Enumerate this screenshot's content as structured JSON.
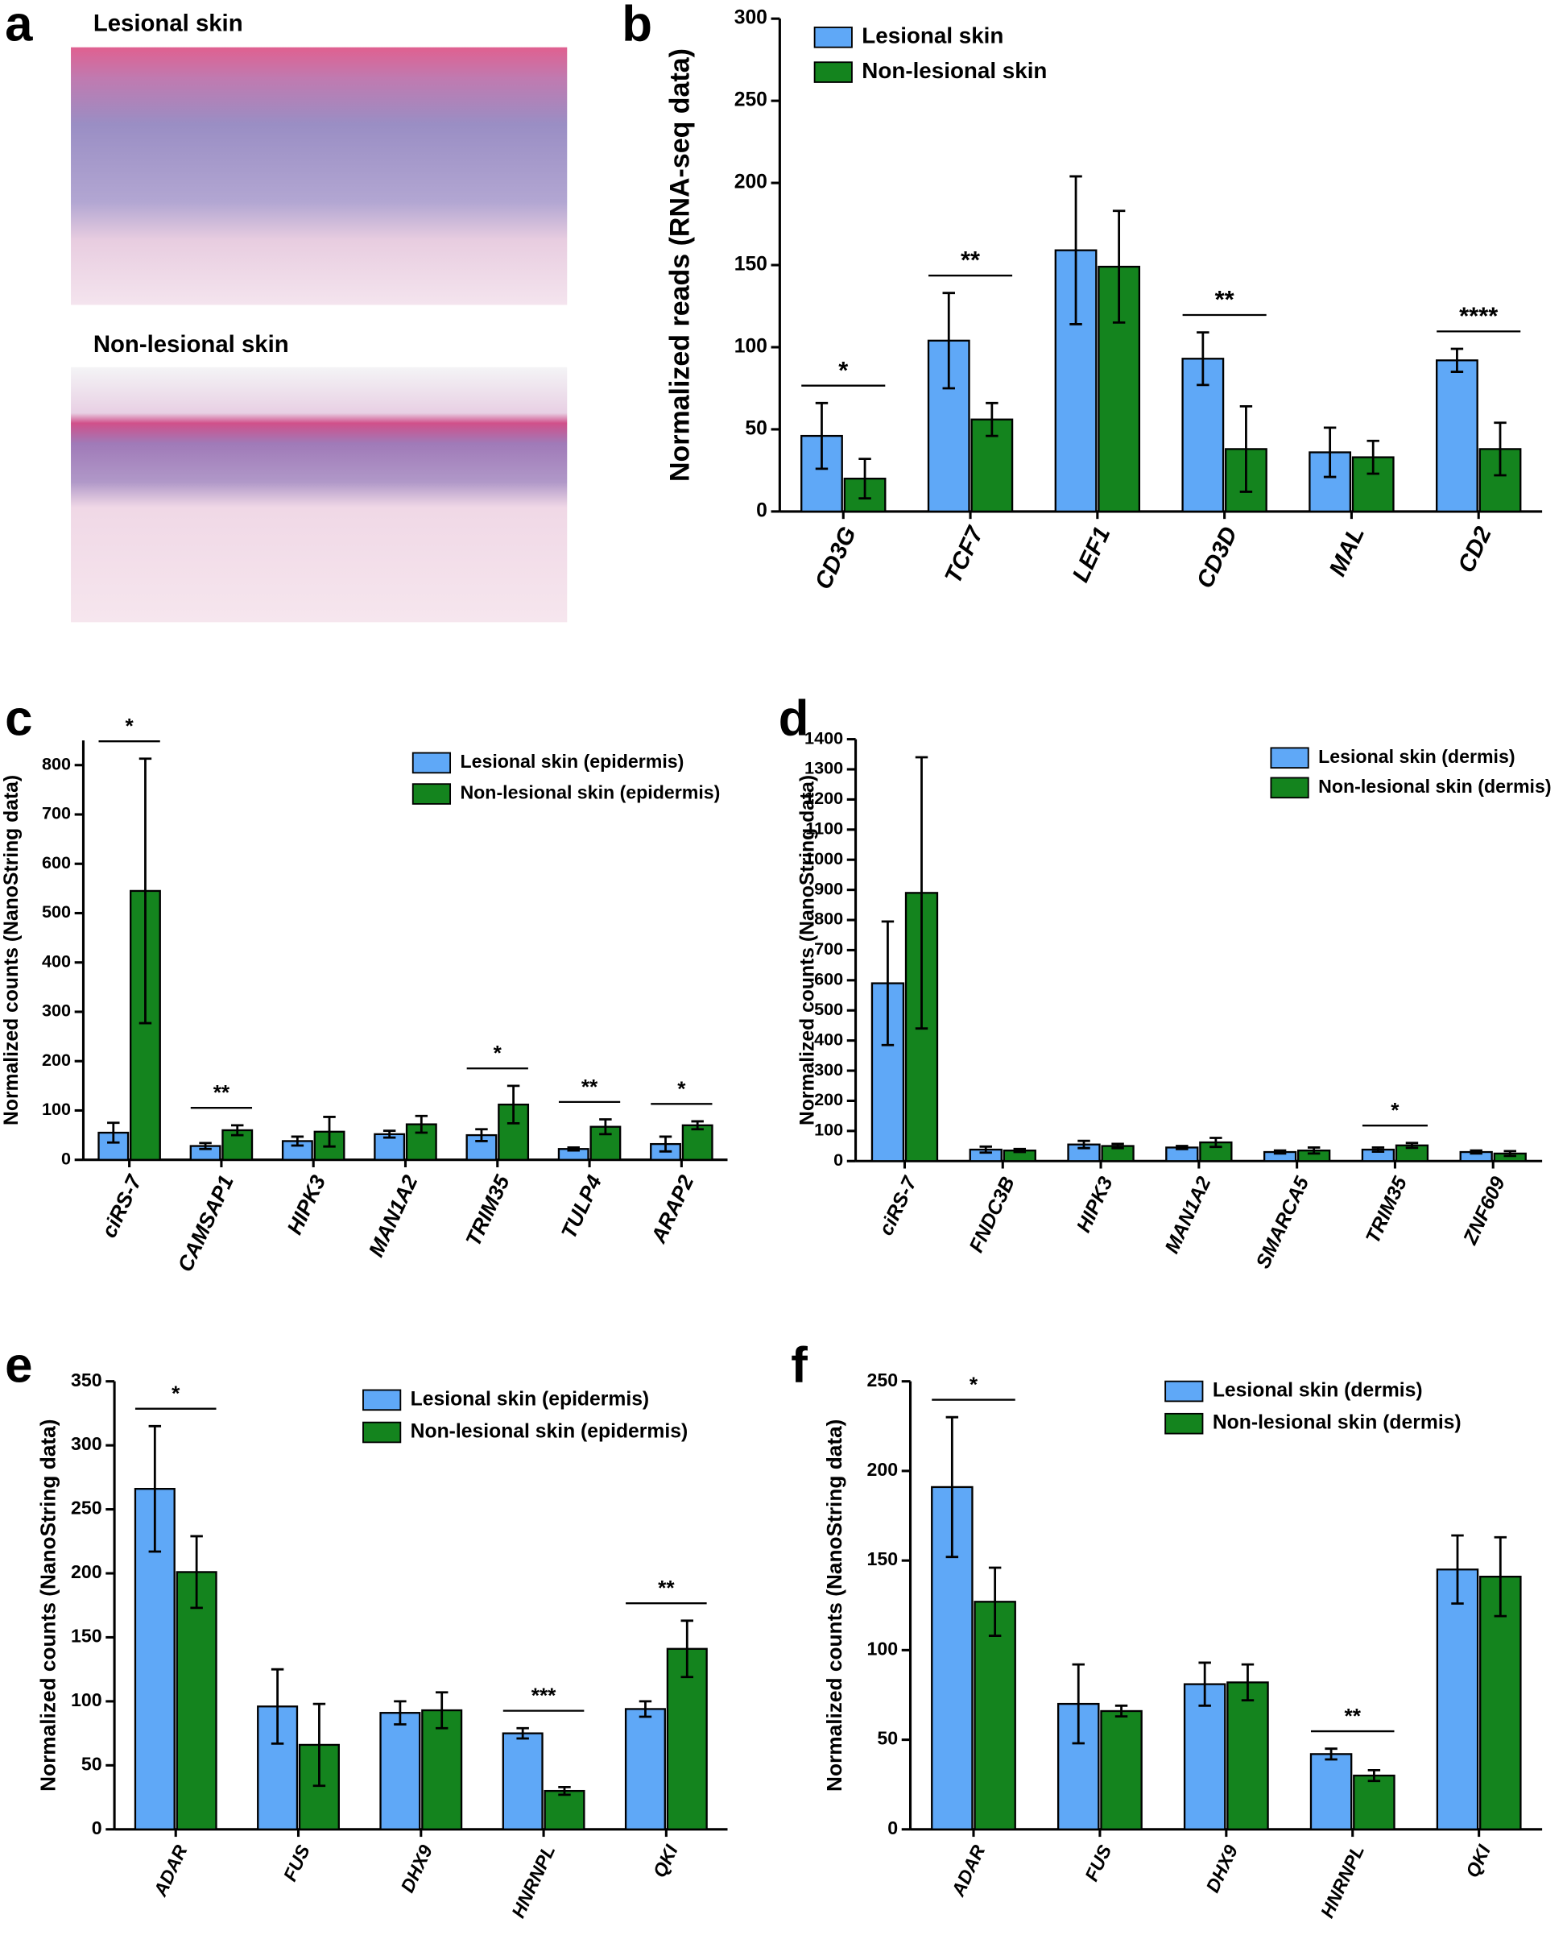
{
  "panel_a": {
    "label": "a",
    "images": [
      {
        "title": "Lesional skin"
      },
      {
        "title": "Non-lesional skin"
      }
    ]
  },
  "chart_data": [
    {
      "type": "bar",
      "panel": "b",
      "ylabel": "Normalized reads (RNA-seq data)",
      "categories": [
        "CD3G",
        "TCF7",
        "LEF1",
        "CD3D",
        "MAL",
        "CD2"
      ],
      "series": [
        {
          "name": "Lesional skin",
          "color": "#5fa8f7",
          "values": [
            46,
            104,
            159,
            93,
            36,
            92
          ],
          "errors": [
            20,
            29,
            45,
            16,
            15,
            7
          ]
        },
        {
          "name": "Non-lesional skin",
          "color": "#14841e",
          "values": [
            20,
            56,
            149,
            38,
            33,
            38
          ],
          "errors": [
            12,
            10,
            34,
            26,
            10,
            16
          ]
        }
      ],
      "significance": [
        "*",
        "**",
        null,
        "**",
        null,
        "****"
      ],
      "ylim": [
        0,
        300
      ],
      "yticks": [
        0,
        50,
        100,
        150,
        200,
        250,
        300
      ]
    },
    {
      "type": "bar",
      "panel": "c",
      "ylabel": "Normalized counts (NanoString data)",
      "categories": [
        "ciRS-7",
        "CAMSAP1",
        "HIPK3",
        "MAN1A2",
        "TRIM35",
        "TULP4",
        "ARAP2"
      ],
      "series": [
        {
          "name": "Lesional skin (epidermis)",
          "color": "#5fa8f7",
          "values": [
            55,
            28,
            38,
            52,
            50,
            22,
            32
          ],
          "errors": [
            20,
            6,
            9,
            7,
            12,
            3,
            15
          ]
        },
        {
          "name": "Non-lesional skin (epidermis)",
          "color": "#14841e",
          "values": [
            545,
            60,
            57,
            72,
            112,
            67,
            70
          ],
          "errors": [
            268,
            10,
            30,
            17,
            38,
            15,
            8
          ]
        }
      ],
      "significance": [
        "*",
        "**",
        null,
        null,
        "*",
        "**",
        "*"
      ],
      "ylim": [
        0,
        850
      ],
      "yticks": [
        0,
        100,
        200,
        300,
        400,
        500,
        600,
        700,
        800
      ]
    },
    {
      "type": "bar",
      "panel": "d",
      "ylabel": "Normalized counts (NanoString data)",
      "categories": [
        "ciRS-7",
        "FNDC3B",
        "HIPK3",
        "MAN1A2",
        "SMARCA5",
        "TRIM35",
        "ZNF609"
      ],
      "series": [
        {
          "name": "Lesional skin (dermis)",
          "color": "#5fa8f7",
          "values": [
            590,
            38,
            55,
            45,
            30,
            38,
            30
          ],
          "errors": [
            205,
            10,
            12,
            5,
            5,
            7,
            5
          ]
        },
        {
          "name": "Non-lesional skin (dermis)",
          "color": "#14841e",
          "values": [
            890,
            35,
            50,
            62,
            35,
            52,
            25
          ],
          "errors": [
            450,
            5,
            7,
            15,
            10,
            8,
            8
          ]
        }
      ],
      "significance": [
        null,
        null,
        null,
        null,
        null,
        "*",
        null
      ],
      "ylim": [
        0,
        1400
      ],
      "yticks": [
        0,
        100,
        200,
        300,
        400,
        500,
        600,
        700,
        800,
        900,
        1000,
        1100,
        1200,
        1300,
        1400
      ]
    },
    {
      "type": "bar",
      "panel": "e",
      "ylabel": "Normalized counts (NanoString data)",
      "categories": [
        "ADAR",
        "FUS",
        "DHX9",
        "HNRNPL",
        "QKI"
      ],
      "series": [
        {
          "name": "Lesional skin (epidermis)",
          "color": "#5fa8f7",
          "values": [
            266,
            96,
            91,
            75,
            94
          ],
          "errors": [
            49,
            29,
            9,
            4,
            6
          ]
        },
        {
          "name": "Non-lesional skin (epidermis)",
          "color": "#14841e",
          "values": [
            201,
            66,
            93,
            30,
            141
          ],
          "errors": [
            28,
            32,
            14,
            3,
            22
          ]
        }
      ],
      "significance": [
        "*",
        null,
        null,
        "***",
        "**"
      ],
      "ylim": [
        0,
        350
      ],
      "yticks": [
        0,
        50,
        100,
        150,
        200,
        250,
        300,
        350
      ]
    },
    {
      "type": "bar",
      "panel": "f",
      "ylabel": "Normalized counts (NanoString data)",
      "categories": [
        "ADAR",
        "FUS",
        "DHX9",
        "HNRNPL",
        "QKI"
      ],
      "series": [
        {
          "name": "Lesional skin (dermis)",
          "color": "#5fa8f7",
          "values": [
            191,
            70,
            81,
            42,
            145
          ],
          "errors": [
            39,
            22,
            12,
            3,
            19
          ]
        },
        {
          "name": "Non-lesional skin (dermis)",
          "color": "#14841e",
          "values": [
            127,
            66,
            82,
            30,
            141
          ],
          "errors": [
            19,
            3,
            10,
            3,
            22
          ]
        }
      ],
      "significance": [
        "*",
        null,
        null,
        "**",
        null
      ],
      "ylim": [
        0,
        250
      ],
      "yticks": [
        0,
        50,
        100,
        150,
        200,
        250
      ]
    }
  ]
}
